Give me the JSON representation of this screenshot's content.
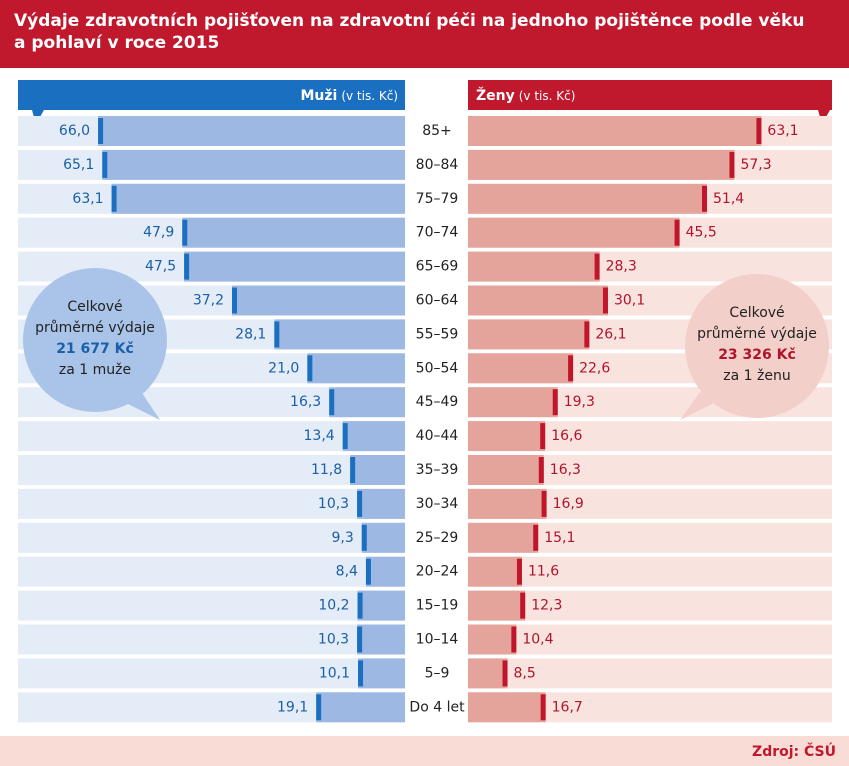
{
  "chart_data": {
    "type": "pyramid",
    "title": "Výdaje zdravotních pojišťoven na zdravotní péči na jednoho pojištěnce podle věku a pohlaví v roce 2015",
    "unit_label": "(v tis. Kč)",
    "categories": [
      "85+",
      "80–84",
      "75–79",
      "70–74",
      "65–69",
      "60–64",
      "55–59",
      "50–54",
      "45–49",
      "40–44",
      "35–39",
      "30–34",
      "25–29",
      "20–24",
      "15–19",
      "10–14",
      "5–9",
      "Do 4 let"
    ],
    "series": [
      {
        "name": "Muži",
        "color": "#9db8e2",
        "marker_color": "#1a6fc0",
        "values": [
          66.0,
          65.1,
          63.1,
          47.9,
          47.5,
          37.2,
          28.1,
          21.0,
          16.3,
          13.4,
          11.8,
          10.3,
          9.3,
          8.4,
          10.2,
          10.3,
          10.1,
          19.1
        ],
        "value_labels": [
          "66,0",
          "65,1",
          "63,1",
          "47,9",
          "47,5",
          "37,2",
          "28,1",
          "21,0",
          "16,3",
          "13,4",
          "11,8",
          "10,3",
          "9,3",
          "8,4",
          "10,2",
          "10,3",
          "10,1",
          "19,1"
        ]
      },
      {
        "name": "Ženy",
        "color": "#e4a39b",
        "marker_color": "#c0162b",
        "values": [
          63.1,
          57.3,
          51.4,
          45.5,
          28.3,
          30.1,
          26.1,
          22.6,
          19.3,
          16.6,
          16.3,
          16.9,
          15.1,
          11.6,
          12.3,
          10.4,
          8.5,
          16.7
        ],
        "value_labels": [
          "63,1",
          "57,3",
          "51,4",
          "45,5",
          "28,3",
          "30,1",
          "26,1",
          "22,6",
          "19,3",
          "16,6",
          "16,3",
          "16,9",
          "15,1",
          "11,6",
          "12,3",
          "10,4",
          "8,5",
          "16,7"
        ]
      }
    ],
    "annotations": [
      {
        "lines": [
          "Celkové",
          "průměrné výdaje",
          "21 677 Kč",
          "za 1 muže"
        ]
      },
      {
        "lines": [
          "Celkové",
          "průměrné výdaje",
          "23 326 Kč",
          "za 1 ženu"
        ]
      }
    ],
    "source": "Zdroj: ČSÚ"
  }
}
